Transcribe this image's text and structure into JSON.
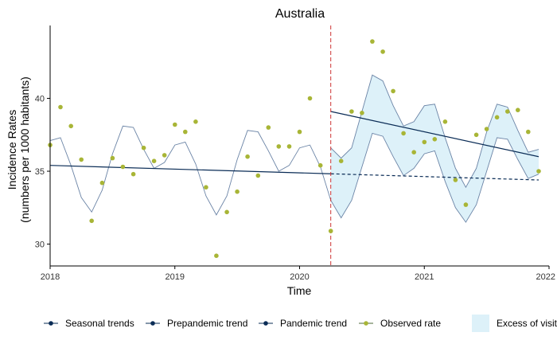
{
  "chart_data": {
    "type": "line",
    "title": "Australia",
    "xlabel": "Time",
    "ylabel_line1": "Incidence Rates",
    "ylabel_line2": "(numbers per 1000 habitants)",
    "xlim": [
      2018.0,
      2022.0
    ],
    "ylim": [
      28.5,
      45.0
    ],
    "x_ticks": [
      2018,
      2019,
      2020,
      2021,
      2022
    ],
    "x_tick_labels": [
      "2018",
      "2019",
      "2020",
      "2021",
      "2022"
    ],
    "y_ticks": [
      30,
      35,
      40
    ],
    "y_tick_labels": [
      "30",
      "35",
      "40"
    ],
    "grid": false,
    "legend_position": "bottom",
    "pandemic_onset": 2020.25,
    "series": [
      {
        "name": "Seasonal trends",
        "x": [
          2018.0,
          2018.083,
          2018.167,
          2018.25,
          2018.333,
          2018.417,
          2018.5,
          2018.583,
          2018.667,
          2018.75,
          2018.833,
          2018.917,
          2019.0,
          2019.083,
          2019.167,
          2019.25,
          2019.333,
          2019.417,
          2019.5,
          2019.583,
          2019.667,
          2019.75,
          2019.833,
          2019.917,
          2020.0,
          2020.083,
          2020.167,
          2020.25
        ],
        "values": [
          37.1,
          37.3,
          35.4,
          33.2,
          32.2,
          33.7,
          36.2,
          38.1,
          38.0,
          36.5,
          35.2,
          35.6,
          36.8,
          37.0,
          35.5,
          33.3,
          32.0,
          33.3,
          35.8,
          37.8,
          37.7,
          36.4,
          35.0,
          35.4,
          36.6,
          36.8,
          35.3,
          33.0
        ]
      },
      {
        "name": "Prepandemic trend",
        "x": [
          2018.0,
          2021.917
        ],
        "values": [
          35.4,
          34.4
        ]
      },
      {
        "name": "Pandemic trend",
        "x": [
          2020.25,
          2021.917
        ],
        "values": [
          39.1,
          36.0
        ]
      },
      {
        "name": "Observed rate",
        "x": [
          2018.0,
          2018.083,
          2018.167,
          2018.25,
          2018.333,
          2018.417,
          2018.5,
          2018.583,
          2018.667,
          2018.75,
          2018.833,
          2018.917,
          2019.0,
          2019.083,
          2019.167,
          2019.25,
          2019.333,
          2019.417,
          2019.5,
          2019.583,
          2019.667,
          2019.75,
          2019.833,
          2019.917,
          2020.0,
          2020.083,
          2020.167,
          2020.25,
          2020.333,
          2020.417,
          2020.5,
          2020.583,
          2020.667,
          2020.75,
          2020.833,
          2020.917,
          2021.0,
          2021.083,
          2021.167,
          2021.25,
          2021.333,
          2021.417,
          2021.5,
          2021.583,
          2021.667,
          2021.75,
          2021.833,
          2021.917
        ],
        "values": [
          36.8,
          39.4,
          38.1,
          35.8,
          31.6,
          34.2,
          35.9,
          35.3,
          34.8,
          36.6,
          35.7,
          36.1,
          38.2,
          37.7,
          38.4,
          33.9,
          29.2,
          32.2,
          33.6,
          36.0,
          34.7,
          38.0,
          36.7,
          36.7,
          37.7,
          40.0,
          35.4,
          30.9,
          35.7,
          39.1,
          39.0,
          43.9,
          43.2,
          40.5,
          37.6,
          36.3,
          37.0,
          37.2,
          38.4,
          34.4,
          32.7,
          37.5,
          37.9,
          38.7,
          39.1,
          39.2,
          37.7,
          35.0
        ]
      },
      {
        "name": "Excess of visits",
        "x": [
          2020.25,
          2020.333,
          2020.417,
          2020.5,
          2020.583,
          2020.667,
          2020.75,
          2020.833,
          2020.917,
          2021.0,
          2021.083,
          2021.167,
          2021.25,
          2021.333,
          2021.417,
          2021.5,
          2021.583,
          2021.667,
          2021.75,
          2021.833,
          2021.917
        ],
        "upper": [
          36.6,
          35.9,
          36.6,
          39.1,
          41.6,
          41.2,
          39.5,
          38.1,
          38.4,
          39.5,
          39.6,
          37.3,
          35.2,
          33.9,
          35.2,
          37.7,
          39.6,
          39.4,
          37.8,
          36.3,
          36.5
        ],
        "lower": [
          33.0,
          31.8,
          33.0,
          35.3,
          37.6,
          37.4,
          36.0,
          34.7,
          35.2,
          36.2,
          36.4,
          34.3,
          32.5,
          31.5,
          32.7,
          35.0,
          37.3,
          37.2,
          35.8,
          34.5,
          34.8
        ]
      }
    ],
    "colors": {
      "seasonal": "#6b84a6",
      "trend": "#0a2c56",
      "observed": "#a8b536",
      "band_fill": "#ddf1f9",
      "band_edge": "#6b84a6",
      "onset_line": "#cc3333",
      "axis": "#000000"
    }
  }
}
